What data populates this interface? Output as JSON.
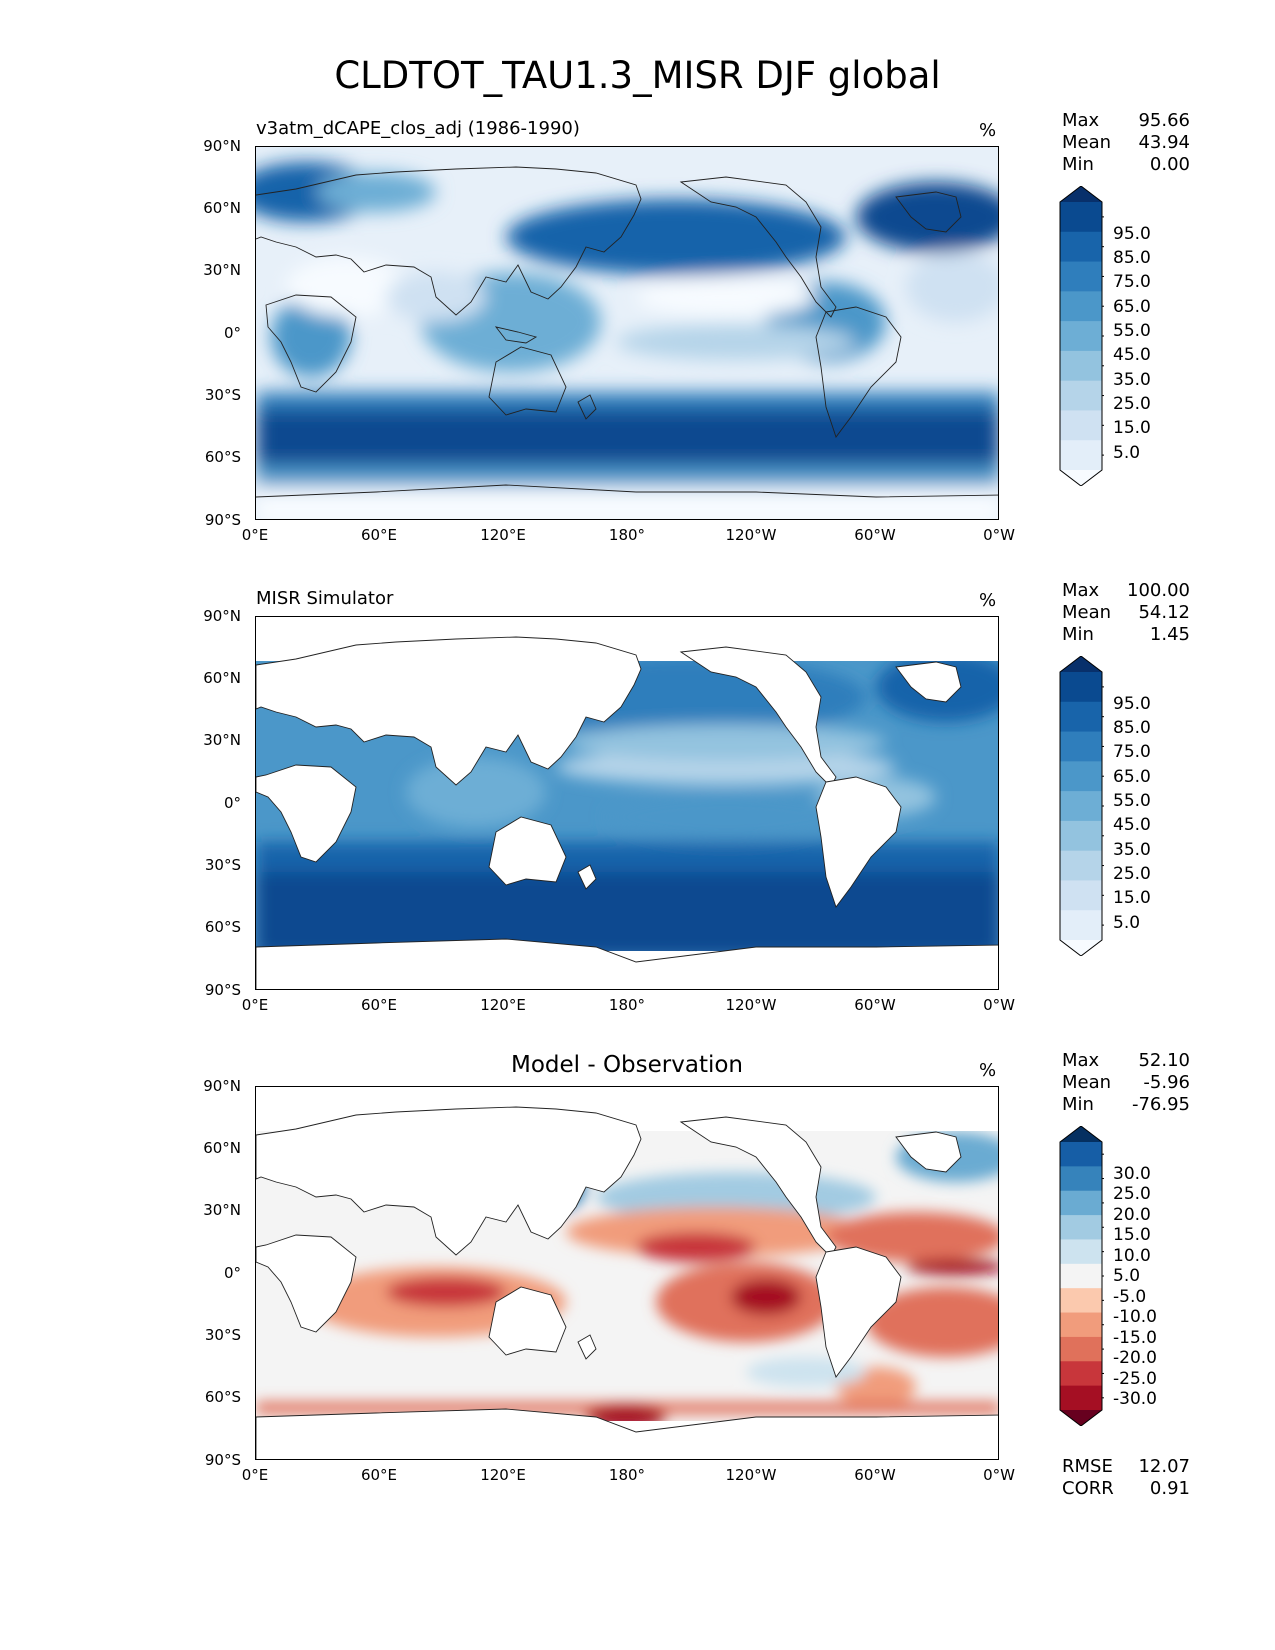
{
  "title": "CLDTOT_TAU1.3_MISR DJF global",
  "axes": {
    "lat_labels": [
      "90°N",
      "60°N",
      "30°N",
      "0°",
      "30°S",
      "60°S",
      "90°S"
    ],
    "lon_labels": [
      "0°E",
      "60°E",
      "120°E",
      "180°",
      "120°W",
      "60°W",
      "0°W"
    ]
  },
  "panels": [
    {
      "name": "test",
      "subtitle": "v3atm_dCAPE_clos_adj (1986-1990)",
      "units": "%",
      "stats": {
        "max_label": "Max",
        "max": "95.66",
        "mean_label": "Mean",
        "mean": "43.94",
        "min_label": "Min",
        "min": "0.00"
      },
      "colorbar_labels": [
        "95.0",
        "85.0",
        "75.0",
        "65.0",
        "55.0",
        "45.0",
        "35.0",
        "25.0",
        "15.0",
        "5.0"
      ]
    },
    {
      "name": "reference",
      "subtitle": "MISR Simulator",
      "units": "%",
      "stats": {
        "max_label": "Max",
        "max": "100.00",
        "mean_label": "Mean",
        "mean": "54.12",
        "min_label": "Min",
        "min": "1.45"
      },
      "colorbar_labels": [
        "95.0",
        "85.0",
        "75.0",
        "65.0",
        "55.0",
        "45.0",
        "35.0",
        "25.0",
        "15.0",
        "5.0"
      ]
    },
    {
      "name": "difference",
      "subtitle": "Model - Observation",
      "units": "%",
      "stats": {
        "max_label": "Max",
        "max": "52.10",
        "mean_label": "Mean",
        "mean": "-5.96",
        "min_label": "Min",
        "min": "-76.95"
      },
      "colorbar_labels": [
        "30.0",
        "25.0",
        "20.0",
        "15.0",
        "10.0",
        "5.0",
        "-5.0",
        "-10.0",
        "-15.0",
        "-20.0",
        "-25.0",
        "-30.0"
      ],
      "metrics": {
        "rmse_label": "RMSE",
        "rmse": "12.07",
        "corr_label": "CORR",
        "corr": "0.91"
      }
    }
  ],
  "colors": {
    "blues": [
      "#f7fbff",
      "#e3eef9",
      "#cfe1f2",
      "#b5d4e9",
      "#93c3df",
      "#6daed5",
      "#4b97c9",
      "#2f7ebc",
      "#1864aa",
      "#0a4a90",
      "#08306b"
    ],
    "diverging": [
      "#67001f",
      "#a50f23",
      "#c8363b",
      "#e0715b",
      "#f19c7c",
      "#fbc9ae",
      "#f4f4f4",
      "#cde3ef",
      "#a2cbe2",
      "#6aabd2",
      "#3683bb",
      "#165ea6",
      "#053061"
    ],
    "land": "#ffffff",
    "coast": "#222222"
  }
}
